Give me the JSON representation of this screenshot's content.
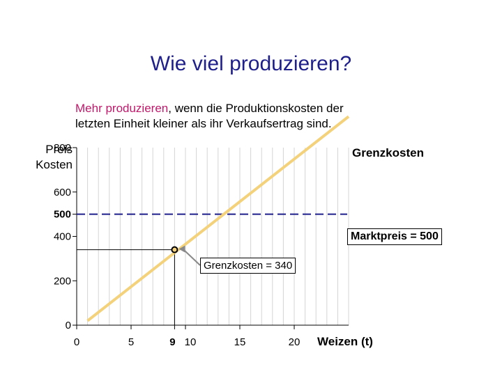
{
  "title": "Wie viel produzieren?",
  "subtitle": {
    "highlight": "Mehr produzieren",
    "line1_rest": ", wenn die Produktionskosten der",
    "line2": "letzten Einheit kleiner als ihr Verkaufsertrag sind."
  },
  "chart_data": {
    "type": "line",
    "ylabel_line1": "Preis",
    "ylabel_line2": "Kosten",
    "xlabel": "Weizen (t)",
    "xlim": [
      0,
      25
    ],
    "ylim": [
      0,
      800
    ],
    "x_ticks": [
      0,
      5,
      9,
      10,
      15,
      20
    ],
    "y_ticks": [
      0,
      200,
      400,
      500,
      600,
      800
    ],
    "emphasized_x_ticks": [
      9
    ],
    "emphasized_y_ticks": [
      500
    ],
    "grid": true,
    "series": [
      {
        "name": "Grenzkosten",
        "color": "#f3d27b",
        "x": [
          1,
          25
        ],
        "y": [
          20,
          940
        ]
      }
    ],
    "reference_line": {
      "label": "Marktpreis = 500",
      "y": 500,
      "color": "#1f1f8c",
      "style": "dashed"
    },
    "highlight_point": {
      "x": 9,
      "y": 340,
      "label": "Grenzkosten = 340"
    }
  }
}
